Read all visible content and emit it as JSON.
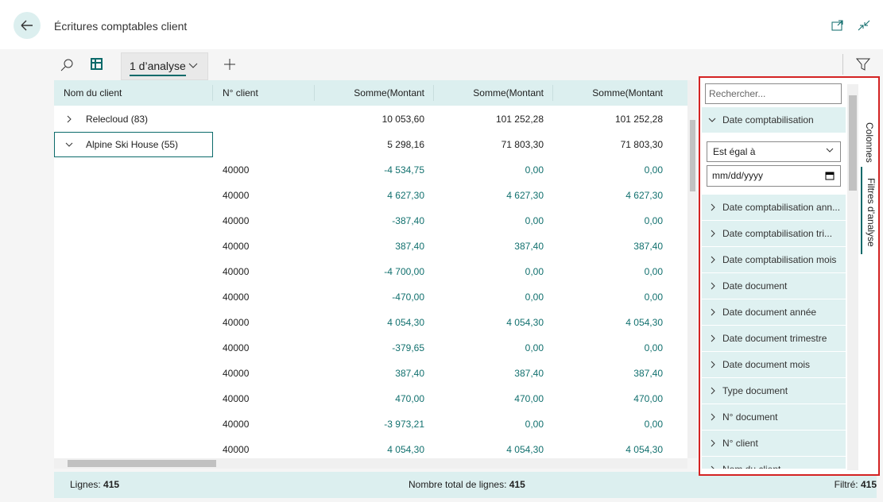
{
  "header": {
    "title": "Écritures comptables client"
  },
  "toolbar": {
    "tab": "1 d’analyse"
  },
  "table": {
    "columns": [
      "Nom du client",
      "N° client",
      "Somme(Montant",
      "Somme(Montant",
      "Somme(Montant"
    ],
    "groups": [
      {
        "name": "Relecloud (83)",
        "values": [
          "10 053,60",
          "101 252,28",
          "101 252,28"
        ]
      },
      {
        "name": "Alpine Ski House (55)",
        "values": [
          "5 298,16",
          "71 803,30",
          "71 803,30"
        ]
      }
    ],
    "rows": [
      [
        "40000",
        "-4 534,75",
        "0,00",
        "0,00"
      ],
      [
        "40000",
        "4 627,30",
        "4 627,30",
        "4 627,30"
      ],
      [
        "40000",
        "-387,40",
        "0,00",
        "0,00"
      ],
      [
        "40000",
        "387,40",
        "387,40",
        "387,40"
      ],
      [
        "40000",
        "-4 700,00",
        "0,00",
        "0,00"
      ],
      [
        "40000",
        "-470,00",
        "0,00",
        "0,00"
      ],
      [
        "40000",
        "4 054,30",
        "4 054,30",
        "4 054,30"
      ],
      [
        "40000",
        "-379,65",
        "0,00",
        "0,00"
      ],
      [
        "40000",
        "387,40",
        "387,40",
        "387,40"
      ],
      [
        "40000",
        "470,00",
        "470,00",
        "470,00"
      ],
      [
        "40000",
        "-3 973,21",
        "0,00",
        "0,00"
      ],
      [
        "40000",
        "4 054,30",
        "4 054,30",
        "4 054,30"
      ]
    ]
  },
  "footer": {
    "lines_label": "Lignes:",
    "lines": "415",
    "total_label": "Nombre total de lignes:",
    "total": "415",
    "filtered_label": "Filtré:",
    "filtered": "415"
  },
  "panel": {
    "search": "Rechercher...",
    "expanded_field": "Date comptabilisation",
    "operator": "Est égal à",
    "date": "mm/dd/yyyy",
    "fields": [
      "Date comptabilisation ann...",
      "Date comptabilisation tri...",
      "Date comptabilisation mois",
      "Date document",
      "Date document année",
      "Date document trimestre",
      "Date document mois",
      "Type document",
      "N° document",
      "N° client",
      "Nom du client"
    ],
    "tabs": [
      "Colonnes",
      "Filtres d’analyse"
    ]
  }
}
